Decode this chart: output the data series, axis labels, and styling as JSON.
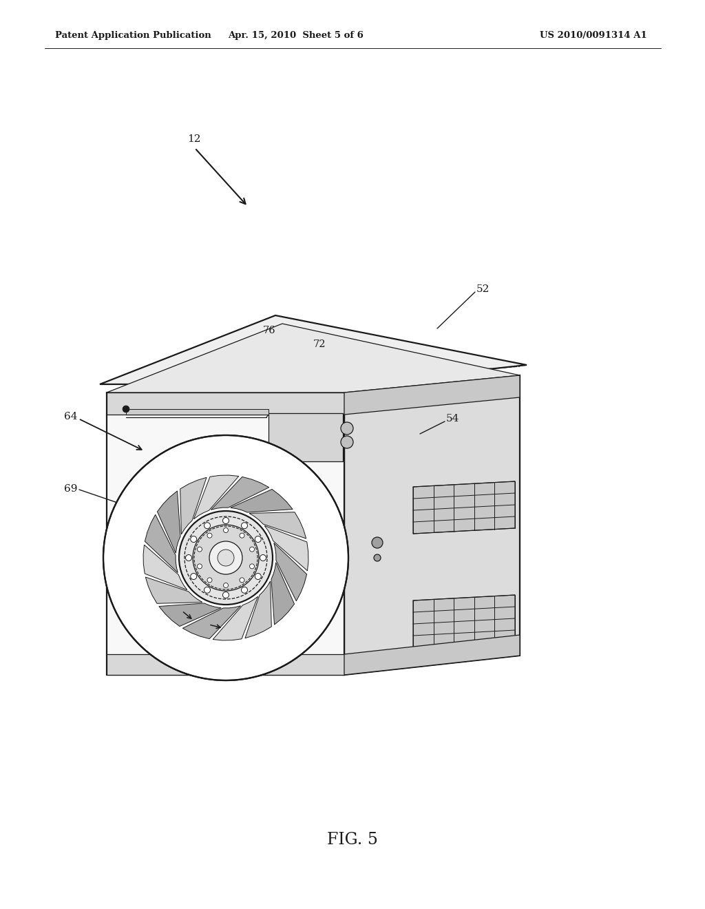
{
  "bg_color": "#ffffff",
  "line_color": "#1a1a1a",
  "header_left": "Patent Application Publication",
  "header_mid": "Apr. 15, 2010  Sheet 5 of 6",
  "header_right": "US 2010/0091314 A1",
  "figure_label": "FIG. 5",
  "lw_main": 1.6,
  "lw_thin": 0.9
}
